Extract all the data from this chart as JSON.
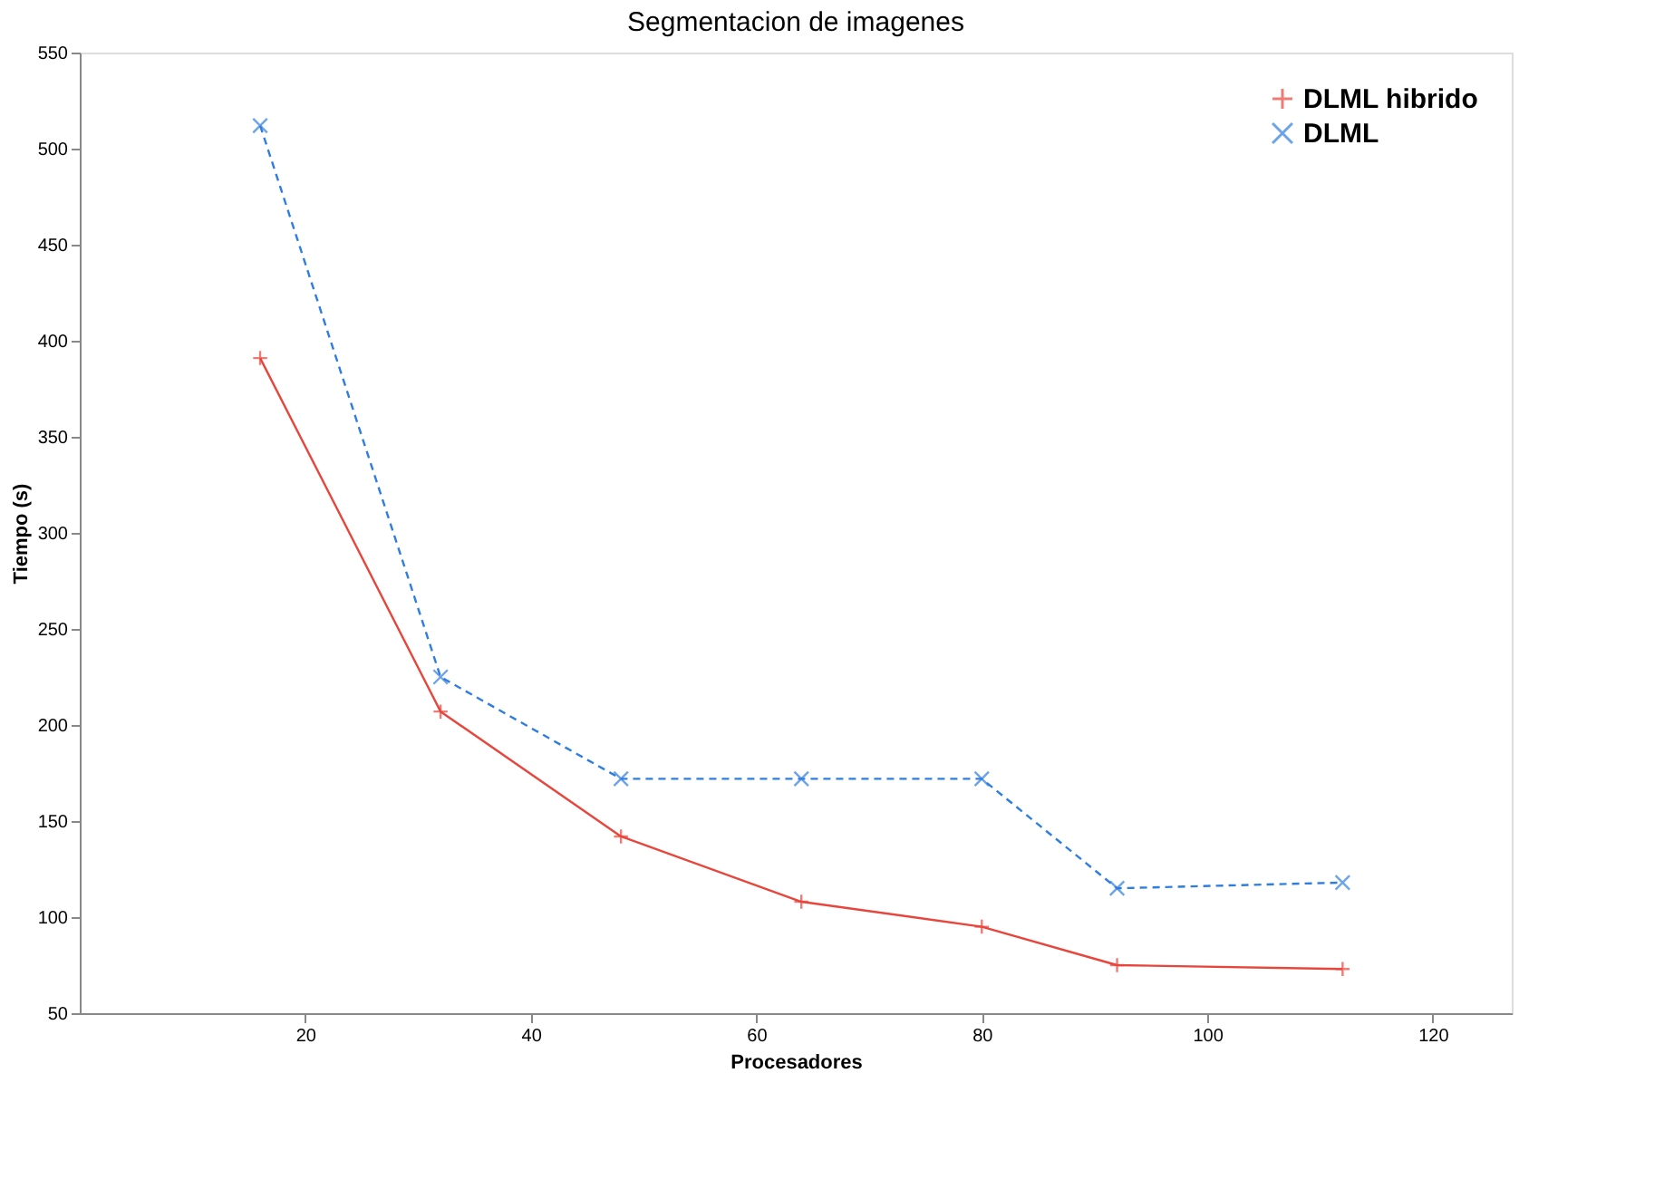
{
  "chart_data": {
    "type": "line",
    "title": "Segmentacion de imagenes",
    "xlabel": "Procesadores",
    "ylabel": "Tiempo (s)",
    "x": [
      16,
      32,
      48,
      64,
      80,
      92,
      112
    ],
    "series": [
      {
        "name": "DLML hibrido",
        "color": "#e8453c",
        "values": [
          391,
          207,
          142,
          108,
          95,
          75,
          73
        ],
        "marker": "cross",
        "line_style": "solid"
      },
      {
        "name": "DLML",
        "color": "#2f7de1",
        "values": [
          512,
          225,
          172,
          172,
          172,
          115,
          118
        ],
        "marker": "x",
        "line_style": "dashed"
      }
    ],
    "xlim": [
      0,
      127
    ],
    "xticks": [
      20,
      40,
      60,
      80,
      100,
      120
    ],
    "ylim": [
      50,
      550
    ],
    "yticks": [
      50,
      100,
      150,
      200,
      250,
      300,
      350,
      400,
      450,
      500,
      550
    ],
    "grid": false,
    "legend": "top right"
  }
}
